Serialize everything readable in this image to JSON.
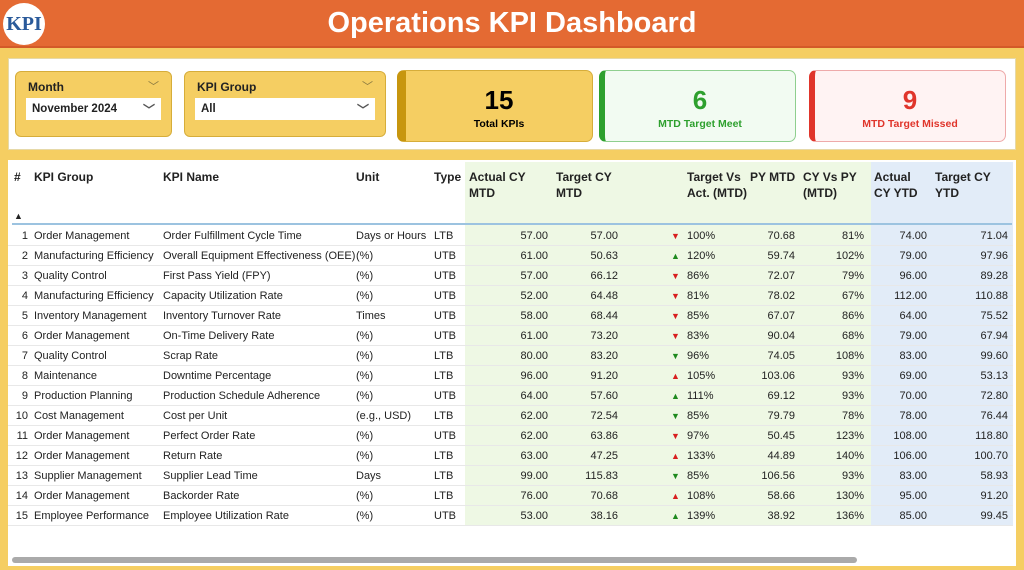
{
  "header": {
    "title": "Operations KPI Dashboard",
    "logo_text": "KPI"
  },
  "filters": {
    "month": {
      "label": "Month",
      "value": "November 2024"
    },
    "kpi_group": {
      "label": "KPI Group",
      "value": "All"
    }
  },
  "cards": [
    {
      "value": "15",
      "caption": "Total KPIs",
      "color": "#111111"
    },
    {
      "value": "6",
      "caption": "MTD Target Meet",
      "color": "#2EA02E"
    },
    {
      "value": "9",
      "caption": "MTD Target Missed",
      "color": "#E0352B"
    }
  ],
  "colors": {
    "good": "#1E8A1E",
    "bad": "#D81F1F",
    "header": "#E46A33",
    "frame": "#F5CE62"
  },
  "table": {
    "columns": [
      "#",
      "KPI Group",
      "KPI Name",
      "Unit",
      "Type",
      "Actual CY MTD",
      "Target CY MTD",
      "Target Vs Act. (MTD)",
      "PY MTD",
      "CY Vs PY (MTD)",
      "Actual CY YTD",
      "Target CY YTD"
    ],
    "sort_indicator": "▲",
    "rows": [
      [
        "1",
        "Order Management",
        "Order Fulfillment Cycle Time",
        "Days or Hours",
        "LTB",
        "57.00",
        "57.00",
        "down",
        "bad",
        "100%",
        "70.68",
        "81%",
        "74.00",
        "71.04"
      ],
      [
        "2",
        "Manufacturing Efficiency",
        "Overall Equipment Effectiveness (OEE)",
        "(%)",
        "UTB",
        "61.00",
        "50.63",
        "up",
        "good",
        "120%",
        "59.74",
        "102%",
        "79.00",
        "97.96"
      ],
      [
        "3",
        "Quality Control",
        "First Pass Yield (FPY)",
        "(%)",
        "UTB",
        "57.00",
        "66.12",
        "down",
        "bad",
        "86%",
        "72.07",
        "79%",
        "96.00",
        "89.28"
      ],
      [
        "4",
        "Manufacturing Efficiency",
        "Capacity Utilization Rate",
        "(%)",
        "UTB",
        "52.00",
        "64.48",
        "down",
        "bad",
        "81%",
        "78.02",
        "67%",
        "112.00",
        "110.88"
      ],
      [
        "5",
        "Inventory Management",
        "Inventory Turnover Rate",
        "Times",
        "UTB",
        "58.00",
        "68.44",
        "down",
        "bad",
        "85%",
        "67.07",
        "86%",
        "64.00",
        "75.52"
      ],
      [
        "6",
        "Order Management",
        "On-Time Delivery Rate",
        "(%)",
        "UTB",
        "61.00",
        "73.20",
        "down",
        "bad",
        "83%",
        "90.04",
        "68%",
        "79.00",
        "67.94"
      ],
      [
        "7",
        "Quality Control",
        "Scrap Rate",
        "(%)",
        "LTB",
        "80.00",
        "83.20",
        "down",
        "good",
        "96%",
        "74.05",
        "108%",
        "83.00",
        "99.60"
      ],
      [
        "8",
        "Maintenance",
        "Downtime Percentage",
        "(%)",
        "LTB",
        "96.00",
        "91.20",
        "up",
        "bad",
        "105%",
        "103.06",
        "93%",
        "69.00",
        "53.13"
      ],
      [
        "9",
        "Production Planning",
        "Production Schedule Adherence",
        "(%)",
        "UTB",
        "64.00",
        "57.60",
        "up",
        "good",
        "111%",
        "69.12",
        "93%",
        "70.00",
        "72.80"
      ],
      [
        "10",
        "Cost Management",
        "Cost per Unit",
        "(e.g., USD)",
        "LTB",
        "62.00",
        "72.54",
        "down",
        "good",
        "85%",
        "79.79",
        "78%",
        "78.00",
        "76.44"
      ],
      [
        "11",
        "Order Management",
        "Perfect Order Rate",
        "(%)",
        "UTB",
        "62.00",
        "63.86",
        "down",
        "bad",
        "97%",
        "50.45",
        "123%",
        "108.00",
        "118.80"
      ],
      [
        "12",
        "Order Management",
        "Return Rate",
        "(%)",
        "LTB",
        "63.00",
        "47.25",
        "up",
        "bad",
        "133%",
        "44.89",
        "140%",
        "106.00",
        "100.70"
      ],
      [
        "13",
        "Supplier Management",
        "Supplier Lead Time",
        "Days",
        "LTB",
        "99.00",
        "115.83",
        "down",
        "good",
        "85%",
        "106.56",
        "93%",
        "83.00",
        "58.93"
      ],
      [
        "14",
        "Order Management",
        "Backorder Rate",
        "(%)",
        "LTB",
        "76.00",
        "70.68",
        "up",
        "bad",
        "108%",
        "58.66",
        "130%",
        "95.00",
        "91.20"
      ],
      [
        "15",
        "Employee Performance",
        "Employee Utilization Rate",
        "(%)",
        "UTB",
        "53.00",
        "38.16",
        "up",
        "good",
        "139%",
        "38.92",
        "136%",
        "85.00",
        "99.45"
      ]
    ]
  }
}
